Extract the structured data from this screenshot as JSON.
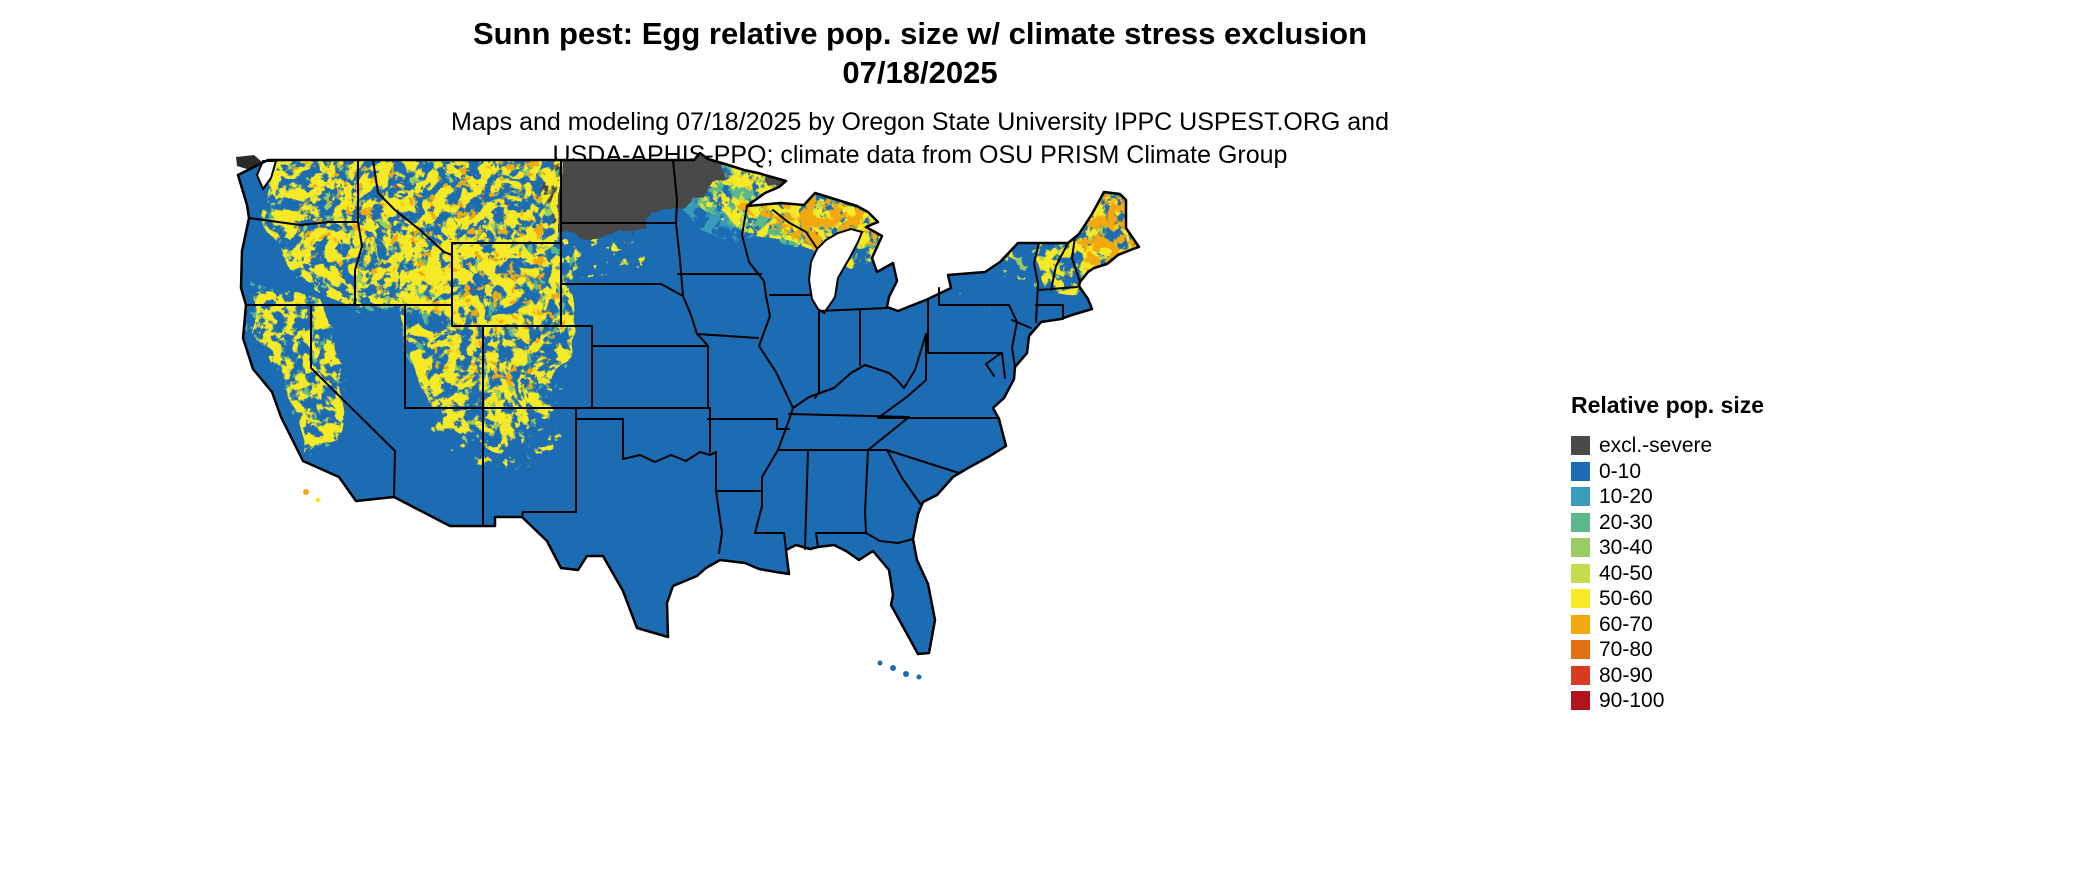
{
  "header": {
    "title_line1": "Sunn pest: Egg relative pop. size w/ climate stress exclusion",
    "title_line2": "07/18/2025",
    "subtitle_line1": "Maps and modeling 07/18/2025 by Oregon State University IPPC USPEST.ORG and",
    "subtitle_line2": "USDA-APHIS-PPQ; climate data from OSU PRISM Climate Group"
  },
  "legend": {
    "title": "Relative pop. size",
    "entries": [
      {
        "label": "excl.-severe",
        "color": "#4a4a4a"
      },
      {
        "label": "0-10",
        "color": "#1c6cb3"
      },
      {
        "label": "10-20",
        "color": "#3b9bba"
      },
      {
        "label": "20-30",
        "color": "#5ab88a"
      },
      {
        "label": "30-40",
        "color": "#99cc62"
      },
      {
        "label": "40-50",
        "color": "#c6dc4e"
      },
      {
        "label": "50-60",
        "color": "#f6e926"
      },
      {
        "label": "60-70",
        "color": "#f2a90e"
      },
      {
        "label": "70-80",
        "color": "#e2700e"
      },
      {
        "label": "80-90",
        "color": "#d73b21"
      },
      {
        "label": "90-100",
        "color": "#b0151d"
      }
    ]
  },
  "map": {
    "region": "Contiguous United States with state boundaries",
    "base_category": "0-10",
    "depicted_regions": [
      {
        "area": "Northern Plains (western North Dakota / eastern Montana)",
        "category": "excl.-severe"
      },
      {
        "area": "Northern Minnesota",
        "category": "excl.-severe"
      },
      {
        "area": "Mountain West (Cascades, Sierra Nevada, Rockies: WA, OR, ID, W-MT, WY, UT, W-CO, N-NM, NE-AZ)",
        "category": "mottled 20-90"
      },
      {
        "area": "Upper Midwest (northern MN, northern WI, Upper Michigan)",
        "category": "mottled 10-90"
      },
      {
        "area": "Northern New England (Maine, NH, VT) and Adirondacks",
        "category": "mottled 30-90"
      },
      {
        "area": "Remainder of CONUS",
        "category": "0-10"
      }
    ]
  }
}
